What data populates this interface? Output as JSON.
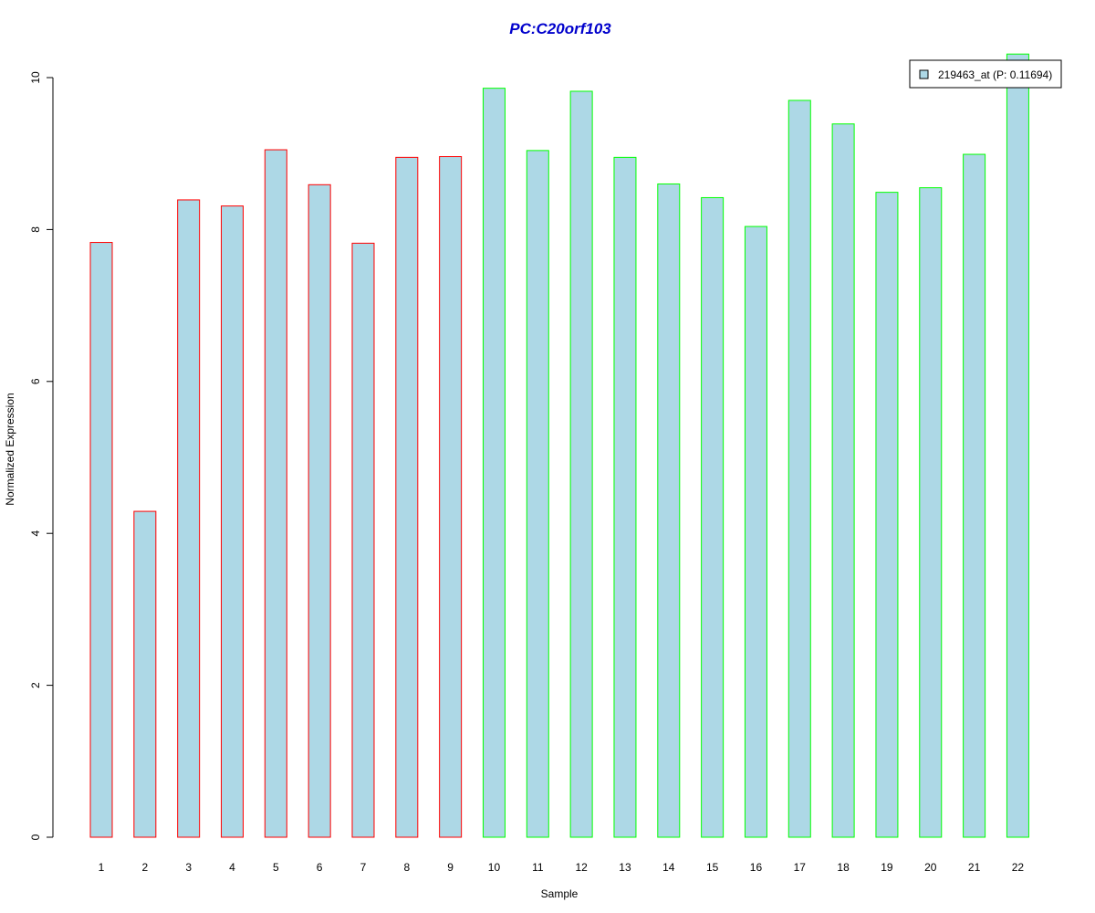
{
  "chart_data": {
    "type": "bar",
    "title": "PC:C20orf103",
    "xlabel": "Sample",
    "ylabel": "Normalized Expression",
    "ylim": [
      0,
      10
    ],
    "yticks": [
      "0",
      "2",
      "4",
      "6",
      "8",
      "10"
    ],
    "categories": [
      "1",
      "2",
      "3",
      "4",
      "5",
      "6",
      "7",
      "8",
      "9",
      "10",
      "11",
      "12",
      "13",
      "14",
      "15",
      "16",
      "17",
      "18",
      "19",
      "20",
      "21",
      "22"
    ],
    "series": [
      {
        "name": "219463_at (P: 0.11694)",
        "values": [
          7.83,
          4.29,
          8.39,
          8.31,
          9.05,
          8.59,
          7.82,
          8.95,
          8.96,
          9.86,
          9.04,
          9.82,
          8.95,
          8.6,
          8.42,
          8.04,
          9.7,
          9.39,
          8.49,
          8.55,
          8.99,
          10.31
        ]
      }
    ],
    "bar_fill": "#add8e6",
    "group_border_colors": [
      "#ff0000",
      "#ff0000",
      "#ff0000",
      "#ff0000",
      "#ff0000",
      "#ff0000",
      "#ff0000",
      "#ff0000",
      "#ff0000",
      "#00ff00",
      "#00ff00",
      "#00ff00",
      "#00ff00",
      "#00ff00",
      "#00ff00",
      "#00ff00",
      "#00ff00",
      "#00ff00",
      "#00ff00",
      "#00ff00",
      "#00ff00",
      "#00ff00"
    ],
    "title_color": "#0000cc",
    "legend_position": "top-right",
    "grid": false
  }
}
